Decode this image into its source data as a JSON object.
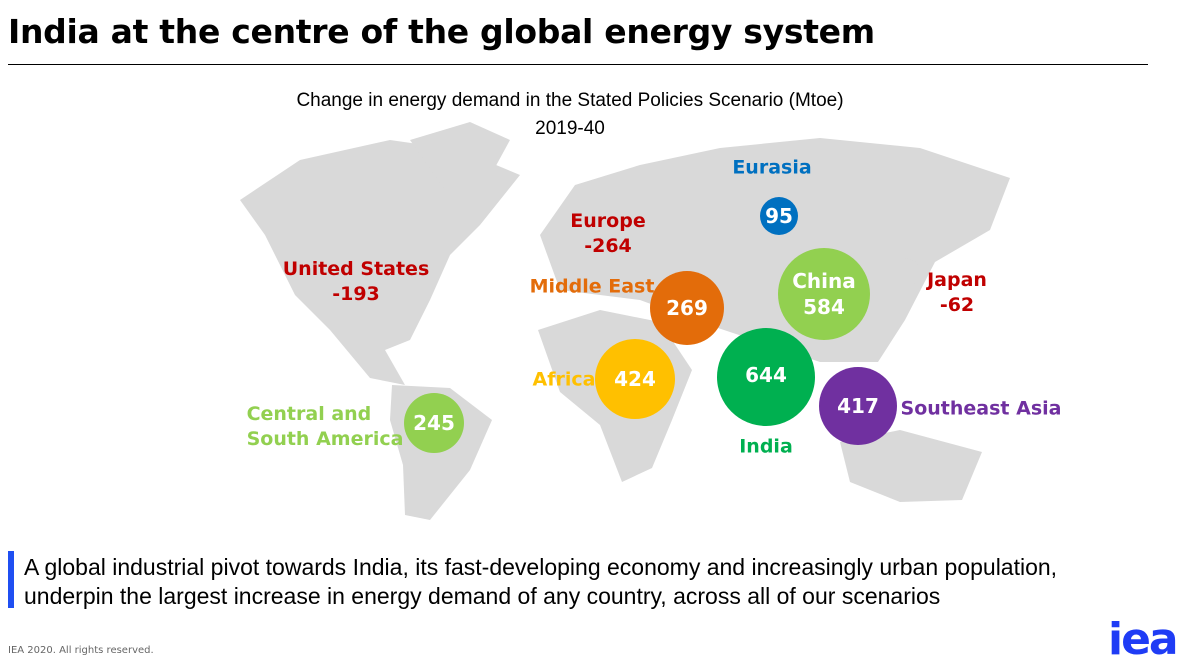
{
  "slide_title": "India at the centre of the global energy system",
  "chart_data": {
    "type": "bubble-map",
    "title": "Change in energy demand in the Stated Policies Scenario (Mtoe)",
    "subtitle": "2019-40",
    "unit": "Mtoe",
    "regions": [
      {
        "name": "United States",
        "value": -193,
        "value_label": "-193",
        "color": "#c00000"
      },
      {
        "name": "Europe",
        "value": -264,
        "value_label": "-264",
        "color": "#c00000"
      },
      {
        "name": "Japan",
        "value": -62,
        "value_label": "-62",
        "color": "#c00000"
      },
      {
        "name": "Eurasia",
        "value": 95,
        "value_label": "95",
        "color": "#0070c0"
      },
      {
        "name": "Middle East",
        "value": 269,
        "value_label": "269",
        "color": "#e36c0a"
      },
      {
        "name": "China",
        "value": 584,
        "value_label": "584",
        "color": "#92d050"
      },
      {
        "name": "Africa",
        "value": 424,
        "value_label": "424",
        "color": "#ffc000"
      },
      {
        "name": "India",
        "value": 644,
        "value_label": "644",
        "color": "#00b050"
      },
      {
        "name": "Southeast Asia",
        "value": 417,
        "value_label": "417",
        "color": "#7030a0"
      },
      {
        "name": "Central and South America",
        "name_line1": "Central and",
        "name_line2": "South America",
        "value": 245,
        "value_label": "245",
        "color": "#92d050"
      }
    ]
  },
  "note": {
    "line1": "A global industrial pivot towards India, its fast-developing economy and increasingly urban population,",
    "line2": "underpin the largest increase in energy demand of any country, across all of our scenarios"
  },
  "footer": {
    "copyright": "IEA 2020. All rights reserved.",
    "logo": "iea"
  },
  "colors": {
    "map": "#d9d9d9",
    "accent": "#1f4ff2"
  }
}
